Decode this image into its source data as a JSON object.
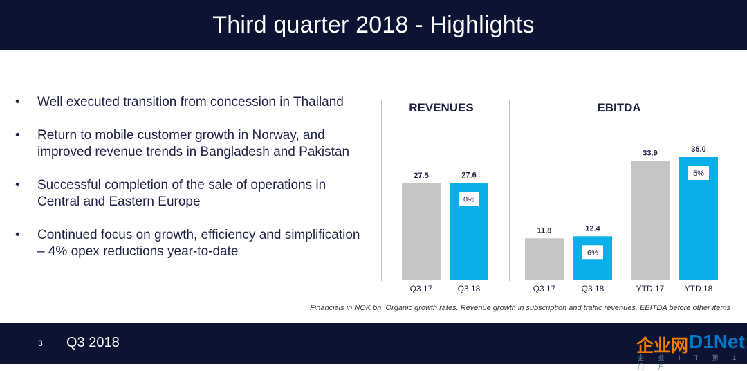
{
  "header": {
    "title": "Third quarter 2018 - Highlights"
  },
  "bullets": [
    "Well executed transition from concession in Thailand",
    "Return to mobile customer growth in Norway, and\nimproved revenue trends in Bangladesh and Pakistan",
    "Successful completion of the sale of operations in\nCentral and Eastern Europe",
    "Continued focus on growth, efficiency and simplification\n– 4% opex reductions year-to-date"
  ],
  "chart_data": [
    {
      "type": "bar",
      "title": "REVENUES",
      "categories": [
        "Q3 17",
        "Q3 18"
      ],
      "values": [
        27.5,
        27.6
      ],
      "value_labels": [
        "27.5",
        "27.6"
      ],
      "growth_badges": [
        null,
        "0%"
      ],
      "colors": [
        "#c5c5c5",
        "#0aaee8"
      ]
    },
    {
      "type": "bar",
      "title": "EBITDA",
      "categories": [
        "Q3 17",
        "Q3 18",
        "YTD 17",
        "YTD 18"
      ],
      "values": [
        11.8,
        12.4,
        33.9,
        35.0
      ],
      "value_labels": [
        "11.8",
        "12.4",
        "33.9",
        "35.0"
      ],
      "growth_badges": [
        null,
        "6%",
        null,
        "5%"
      ],
      "colors": [
        "#c5c5c5",
        "#0aaee8",
        "#c5c5c5",
        "#0aaee8"
      ]
    }
  ],
  "footnote": "Financials in NOK bn. Organic growth rates. Revenue growth in subscription and traffic revenues. EBITDA before other items",
  "footer": {
    "page_number": "3",
    "label": "Q3 2018",
    "watermark_cn": "企业网",
    "watermark_net": "D1Net",
    "watermark_sub": "企 业 I T 第 1 门 户"
  }
}
